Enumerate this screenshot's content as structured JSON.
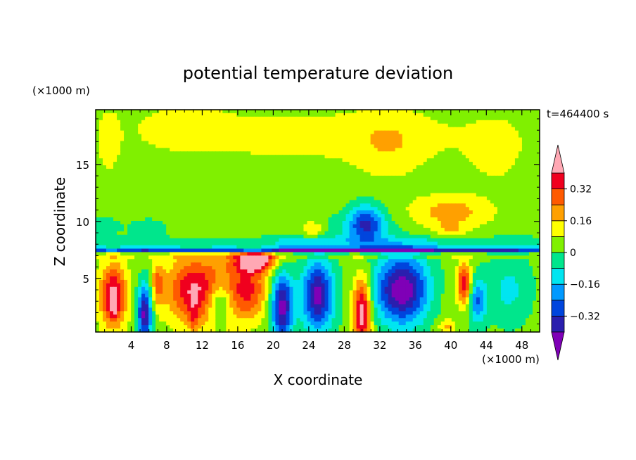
{
  "chart_data": {
    "type": "heatmap",
    "title": "potential temperature deviation",
    "xlabel": "X coordinate",
    "ylabel": "Z coordinate",
    "x_unit": "(×1000 m)",
    "y_unit": "(×1000 m)",
    "time_label": "t=464400 s",
    "xlim": [
      0,
      50
    ],
    "ylim": [
      0.3,
      19.8
    ],
    "x_ticks": [
      4,
      8,
      12,
      16,
      20,
      24,
      28,
      32,
      36,
      40,
      44,
      48
    ],
    "y_ticks": [
      5,
      10,
      15
    ],
    "colorbar": {
      "labels": [
        "0.32",
        "0.16",
        "0",
        "−0.16",
        "−0.32"
      ],
      "label_levels": [
        0.32,
        0.16,
        0,
        -0.16,
        -0.32
      ],
      "levels": [
        -0.4,
        -0.32,
        -0.24,
        -0.16,
        -0.08,
        0,
        0.08,
        0.16,
        0.24,
        0.32,
        0.4
      ],
      "colors": [
        "#7f00b7",
        "#2a1fae",
        "#0045dd",
        "#0099ff",
        "#00e5f0",
        "#00e68c",
        "#80f000",
        "#ffff00",
        "#ffa000",
        "#ff5a00",
        "#f0001e",
        "#ffa8b4"
      ]
    },
    "background_value": 0.03,
    "features": [
      {
        "x": 25,
        "z": 17.5,
        "sx": 22,
        "sz": 2.5,
        "v": 0.08
      },
      {
        "x": 33,
        "z": 16.5,
        "sx": 4,
        "sz": 3.2,
        "v": 0.08
      },
      {
        "x": 10,
        "z": 18.5,
        "sx": 4.5,
        "sz": 1.8,
        "v": 0.07
      },
      {
        "x": 45,
        "z": 16,
        "sx": 3,
        "sz": 3,
        "v": 0.07
      },
      {
        "x": 1.5,
        "z": 17,
        "sx": 1.2,
        "sz": 3,
        "v": 0.08
      },
      {
        "x": 22,
        "z": 11.5,
        "sx": 2.5,
        "sz": 2,
        "v": -0.005
      },
      {
        "x": 14,
        "z": 11.5,
        "sx": 3.5,
        "sz": 2,
        "v": -0.002
      },
      {
        "x": 40,
        "z": 10.8,
        "sx": 4.5,
        "sz": 1.5,
        "v": 0.17
      },
      {
        "x": 40,
        "z": 9.3,
        "sx": 1.3,
        "sz": 0.5,
        "v": 0.12
      },
      {
        "x": 24.5,
        "z": 9.3,
        "sx": 1.3,
        "sz": 0.8,
        "v": 0.15
      },
      {
        "x": 30.5,
        "z": 9.8,
        "sx": 2,
        "sz": 1.6,
        "v": -0.34
      },
      {
        "x": 28.5,
        "z": 9.2,
        "sx": 4.5,
        "sz": 1.3,
        "v": -0.07
      },
      {
        "x": 6,
        "z": 9.4,
        "sx": 2.5,
        "sz": 0.9,
        "v": -0.07
      },
      {
        "x": 1,
        "z": 9.5,
        "sx": 1.5,
        "sz": 0.8,
        "v": -0.11
      },
      {
        "x": 25,
        "z": 7.5,
        "sx": 40,
        "sz": 0.25,
        "v": -0.45
      },
      {
        "x": 25,
        "z": 7.0,
        "sx": 40,
        "sz": 0.2,
        "v": 0.1
      },
      {
        "x": 25,
        "z": 8.2,
        "sx": 40,
        "sz": 0.45,
        "v": -0.12
      },
      {
        "x": 2,
        "z": 3.5,
        "sx": 1.5,
        "sz": 2.8,
        "v": 0.4
      },
      {
        "x": 2,
        "z": 2.5,
        "sx": 0.4,
        "sz": 1.2,
        "v": 0.12
      },
      {
        "x": 5.5,
        "z": 2,
        "sx": 0.8,
        "sz": 2.5,
        "v": -0.46
      },
      {
        "x": 7,
        "z": 4.5,
        "sx": 0.7,
        "sz": 2,
        "v": 0.2
      },
      {
        "x": 11,
        "z": 4,
        "sx": 3,
        "sz": 3,
        "v": 0.37
      },
      {
        "x": 11,
        "z": 1.5,
        "sx": 0.6,
        "sz": 1.5,
        "v": 0.12
      },
      {
        "x": 14,
        "z": 3,
        "sx": 1.4,
        "sz": 1.8,
        "v": -0.26
      },
      {
        "x": 15,
        "z": 3.8,
        "sx": 2.5,
        "sz": 3,
        "v": 0.18
      },
      {
        "x": 18,
        "z": 6.5,
        "sx": 2.3,
        "sz": 0.9,
        "v": 0.46
      },
      {
        "x": 17.5,
        "z": 4,
        "sx": 2,
        "sz": 2.5,
        "v": 0.24
      },
      {
        "x": 21,
        "z": 2.5,
        "sx": 1.2,
        "sz": 3,
        "v": -0.46
      },
      {
        "x": 25,
        "z": 3.5,
        "sx": 1.8,
        "sz": 3,
        "v": -0.46
      },
      {
        "x": 30,
        "z": 2,
        "sx": 1,
        "sz": 3,
        "v": 0.45
      },
      {
        "x": 34.5,
        "z": 4,
        "sx": 3,
        "sz": 3,
        "v": -0.5
      },
      {
        "x": 38.5,
        "z": 3.5,
        "sx": 1.5,
        "sz": 2,
        "v": 0.02
      },
      {
        "x": 41.5,
        "z": 4.5,
        "sx": 0.8,
        "sz": 1.8,
        "v": 0.36
      },
      {
        "x": 43,
        "z": 3,
        "sx": 1,
        "sz": 2,
        "v": -0.26
      },
      {
        "x": 46.5,
        "z": 4,
        "sx": 2.5,
        "sz": 3,
        "v": -0.13
      },
      {
        "x": 39.5,
        "z": 0.8,
        "sx": 1,
        "sz": 0.6,
        "v": 0.16
      }
    ]
  }
}
